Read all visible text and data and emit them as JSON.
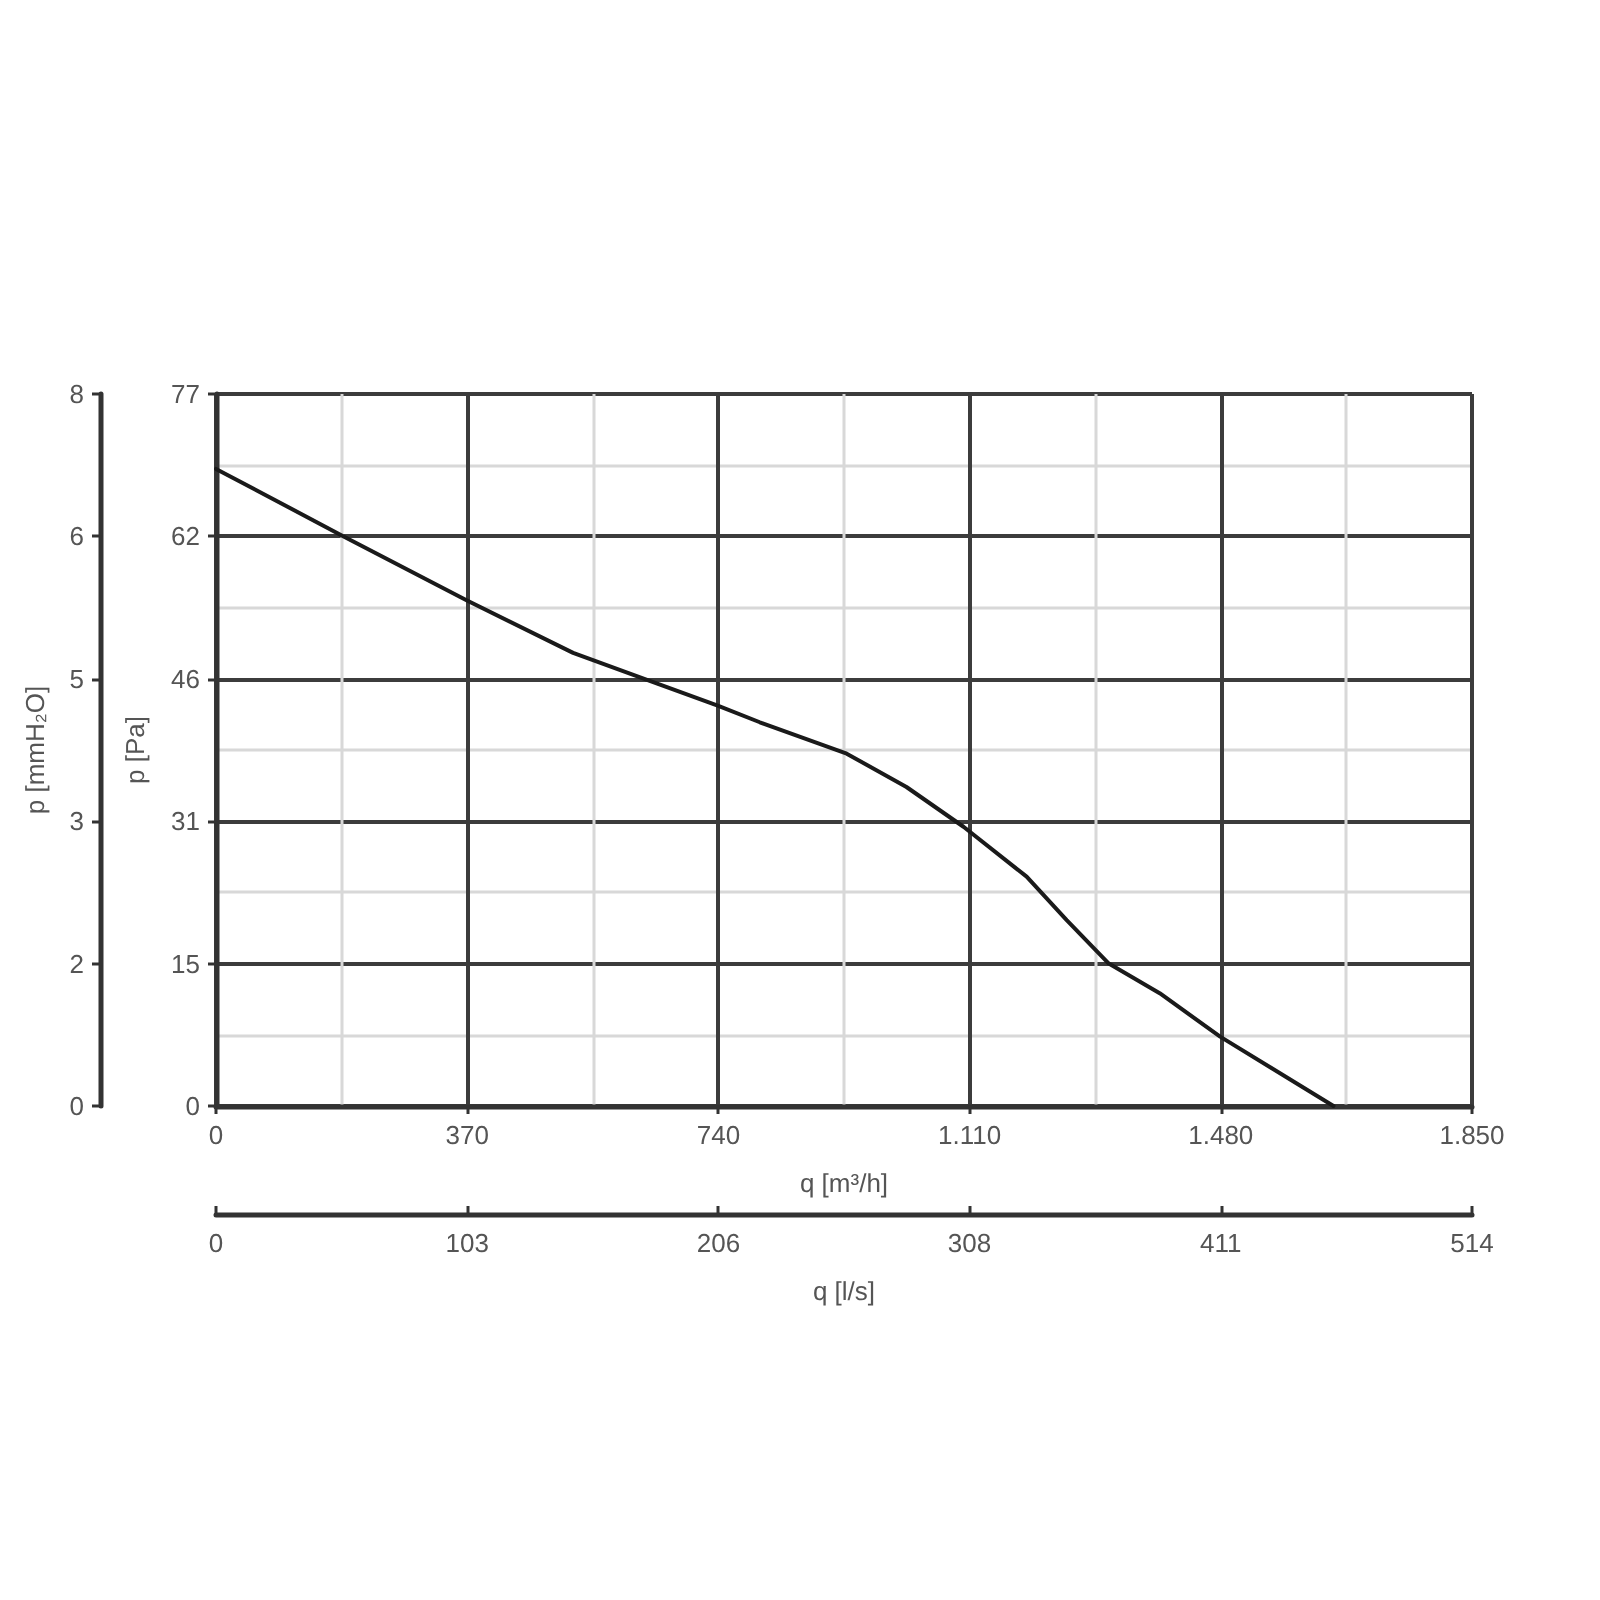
{
  "chart_data": {
    "type": "line",
    "x": [
      0,
      188,
      369,
      526,
      649,
      739,
      801,
      929,
      1017,
      1101,
      1194,
      1253,
      1315,
      1390,
      1479,
      1646
    ],
    "values": [
      68.9,
      61.6,
      54.7,
      49.0,
      45.7,
      43.3,
      41.5,
      38.1,
      34.5,
      30.2,
      24.8,
      20.1,
      15.4,
      12.2,
      7.5,
      0
    ],
    "color": "#1a1a1a",
    "xlabel": "q [m³/h]",
    "ylabel": "p [Pa]",
    "y2label": "p [mmH₂O]",
    "x2label": "q [l/s]",
    "xlim": [
      0,
      1850
    ],
    "xticks": [
      0,
      370,
      740,
      {
        "value": 1110,
        "label": "1.110"
      },
      {
        "value": 1480,
        "label": "1.480"
      },
      {
        "value": 1850,
        "label": "1.850"
      }
    ],
    "ylim": [
      0,
      77
    ],
    "yticks": [
      0,
      {
        "value": 15.4,
        "label": "15"
      },
      {
        "value": 30.8,
        "label": "31"
      },
      {
        "value": 46.2,
        "label": "46"
      },
      {
        "value": 61.6,
        "label": "62"
      },
      77
    ],
    "y2lim": [
      0,
      7.85
    ],
    "y2ticks": [
      0,
      {
        "value": 1.57,
        "label": "2"
      },
      {
        "value": 3.14,
        "label": "3"
      },
      {
        "value": 4.71,
        "label": "5"
      },
      {
        "value": 6.28,
        "label": "6"
      },
      {
        "value": 7.85,
        "label": "8"
      }
    ],
    "x2lim": [
      0,
      513.9
    ],
    "x2ticks": [
      0,
      {
        "value": 102.8,
        "label": "103"
      },
      {
        "value": 205.6,
        "label": "206"
      },
      {
        "value": 308.3,
        "label": "308"
      },
      {
        "value": 411.1,
        "label": "411"
      },
      {
        "value": 513.9,
        "label": "514"
      }
    ],
    "grid": true
  }
}
